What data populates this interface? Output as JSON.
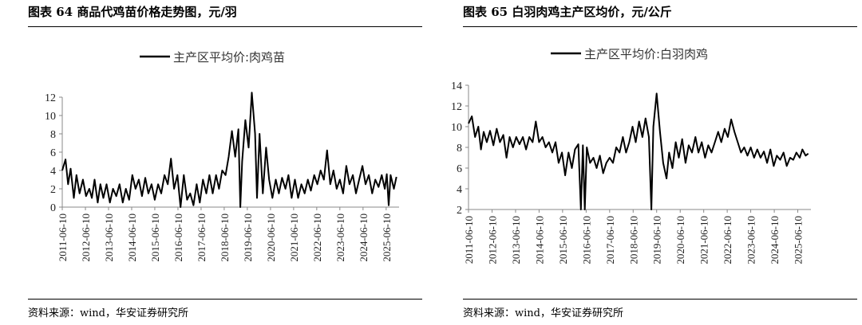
{
  "charts": [
    {
      "figure_title": "图表 64 商品代鸡苗价格走势图，元/羽",
      "source": "资料来源：wind，华安证券研究所"
    },
    {
      "figure_title": "图表 65 白羽肉鸡主产区均价，元/公斤",
      "source": "资料来源：wind，华安证券研究所"
    }
  ],
  "chart_data": [
    {
      "type": "line",
      "title": "",
      "xlabel": "",
      "ylabel": "",
      "xlim": [
        "2011-06-10",
        "2025-12-31"
      ],
      "ylim": [
        0,
        12
      ],
      "yticks": [
        0,
        2,
        4,
        6,
        8,
        10,
        12
      ],
      "xticks": [
        "2011-06-10",
        "2012-06-10",
        "2013-06-10",
        "2014-06-10",
        "2015-06-10",
        "2016-06-10",
        "2017-06-10",
        "2018-06-10",
        "2019-06-10",
        "2020-06-10",
        "2021-06-10",
        "2022-06-10",
        "2023-06-10",
        "2024-06-10",
        "2025-06-10"
      ],
      "grid": false,
      "legend": "top-center",
      "line_color": "#000000",
      "series": [
        {
          "name": "主产区平均价:肉鸡苗",
          "points": [
            [
              "2011-06-10",
              4.0
            ],
            [
              "2011-08-01",
              5.2
            ],
            [
              "2011-09-10",
              2.5
            ],
            [
              "2011-10-20",
              4.2
            ],
            [
              "2011-12-10",
              1.0
            ],
            [
              "2012-01-20",
              3.5
            ],
            [
              "2012-03-10",
              1.5
            ],
            [
              "2012-05-01",
              3.0
            ],
            [
              "2012-06-20",
              1.2
            ],
            [
              "2012-08-10",
              2.0
            ],
            [
              "2012-09-20",
              1.0
            ],
            [
              "2012-11-01",
              3.0
            ],
            [
              "2012-12-20",
              0.5
            ],
            [
              "2013-02-01",
              2.5
            ],
            [
              "2013-03-20",
              1.0
            ],
            [
              "2013-05-10",
              2.5
            ],
            [
              "2013-07-01",
              0.5
            ],
            [
              "2013-08-20",
              2.0
            ],
            [
              "2013-10-10",
              1.2
            ],
            [
              "2013-12-01",
              2.5
            ],
            [
              "2014-01-20",
              0.5
            ],
            [
              "2014-03-10",
              2.0
            ],
            [
              "2014-05-01",
              0.8
            ],
            [
              "2014-06-20",
              3.5
            ],
            [
              "2014-08-10",
              2.0
            ],
            [
              "2014-10-01",
              3.0
            ],
            [
              "2014-11-20",
              1.2
            ],
            [
              "2015-01-10",
              3.2
            ],
            [
              "2015-03-01",
              1.5
            ],
            [
              "2015-04-20",
              2.5
            ],
            [
              "2015-06-10",
              0.8
            ],
            [
              "2015-08-01",
              2.5
            ],
            [
              "2015-09-20",
              1.5
            ],
            [
              "2015-11-10",
              3.5
            ],
            [
              "2016-01-01",
              2.5
            ],
            [
              "2016-02-20",
              5.3
            ],
            [
              "2016-04-10",
              2.0
            ],
            [
              "2016-06-01",
              3.5
            ],
            [
              "2016-07-20",
              0.0
            ],
            [
              "2016-09-10",
              3.5
            ],
            [
              "2016-11-01",
              0.8
            ],
            [
              "2016-12-20",
              1.5
            ],
            [
              "2017-02-10",
              0.2
            ],
            [
              "2017-04-01",
              2.5
            ],
            [
              "2017-05-20",
              0.5
            ],
            [
              "2017-07-10",
              3.0
            ],
            [
              "2017-09-01",
              1.5
            ],
            [
              "2017-10-20",
              3.5
            ],
            [
              "2017-12-10",
              1.5
            ],
            [
              "2018-02-01",
              3.5
            ],
            [
              "2018-03-20",
              2.0
            ],
            [
              "2018-05-10",
              4.0
            ],
            [
              "2018-07-01",
              3.5
            ],
            [
              "2018-08-20",
              5.5
            ],
            [
              "2018-10-10",
              8.3
            ],
            [
              "2018-12-01",
              5.5
            ],
            [
              "2019-01-20",
              8.5
            ],
            [
              "2019-02-20",
              0.0
            ],
            [
              "2019-03-20",
              5.0
            ],
            [
              "2019-05-10",
              9.5
            ],
            [
              "2019-07-01",
              6.5
            ],
            [
              "2019-08-20",
              12.5
            ],
            [
              "2019-10-10",
              8.0
            ],
            [
              "2019-11-10",
              1.0
            ],
            [
              "2019-12-20",
              8.0
            ],
            [
              "2020-02-10",
              1.5
            ],
            [
              "2020-04-01",
              6.5
            ],
            [
              "2020-05-20",
              3.0
            ],
            [
              "2020-07-10",
              1.0
            ],
            [
              "2020-09-01",
              3.0
            ],
            [
              "2020-10-20",
              1.5
            ],
            [
              "2020-12-10",
              3.2
            ],
            [
              "2021-02-01",
              2.0
            ],
            [
              "2021-03-20",
              3.5
            ],
            [
              "2021-05-10",
              1.0
            ],
            [
              "2021-07-01",
              3.0
            ],
            [
              "2021-08-20",
              1.0
            ],
            [
              "2021-10-10",
              2.5
            ],
            [
              "2021-12-01",
              1.5
            ],
            [
              "2022-01-20",
              3.0
            ],
            [
              "2022-03-10",
              1.8
            ],
            [
              "2022-05-01",
              3.5
            ],
            [
              "2022-06-20",
              2.5
            ],
            [
              "2022-08-10",
              4.0
            ],
            [
              "2022-10-01",
              3.0
            ],
            [
              "2022-11-20",
              6.2
            ],
            [
              "2023-01-10",
              2.5
            ],
            [
              "2023-03-01",
              4.0
            ],
            [
              "2023-04-20",
              2.0
            ],
            [
              "2023-06-10",
              3.0
            ],
            [
              "2023-08-01",
              1.5
            ],
            [
              "2023-09-20",
              4.5
            ],
            [
              "2023-11-10",
              2.5
            ],
            [
              "2024-01-01",
              3.5
            ],
            [
              "2024-02-20",
              1.5
            ],
            [
              "2024-04-10",
              3.0
            ],
            [
              "2024-06-01",
              4.5
            ],
            [
              "2024-07-20",
              2.5
            ],
            [
              "2024-09-10",
              3.5
            ],
            [
              "2024-11-01",
              1.5
            ],
            [
              "2024-12-20",
              3.0
            ],
            [
              "2025-02-10",
              2.2
            ],
            [
              "2025-04-01",
              3.5
            ],
            [
              "2025-05-20",
              2.0
            ],
            [
              "2025-06-20",
              3.6
            ],
            [
              "2025-07-20",
              0.2
            ],
            [
              "2025-08-20",
              3.5
            ],
            [
              "2025-10-10",
              2.0
            ],
            [
              "2025-11-20",
              3.3
            ]
          ]
        }
      ]
    },
    {
      "type": "line",
      "title": "",
      "xlabel": "",
      "ylabel": "",
      "xlim": [
        "2011-06-10",
        "2025-12-31"
      ],
      "ylim": [
        2,
        14
      ],
      "yticks": [
        2,
        4,
        6,
        8,
        10,
        12,
        14
      ],
      "xticks": [
        "2011-06-10",
        "2012-06-10",
        "2013-06-10",
        "2014-06-10",
        "2015-06-10",
        "2016-06-10",
        "2017-06-10",
        "2018-06-10",
        "2019-06-10",
        "2020-06-10",
        "2021-06-10",
        "2022-06-10",
        "2023-06-10",
        "2024-06-10",
        "2025-06-10"
      ],
      "grid": false,
      "legend": "top-center",
      "line_color": "#000000",
      "series": [
        {
          "name": "主产区平均价:白羽肉鸡",
          "points": [
            [
              "2011-06-10",
              10.3
            ],
            [
              "2011-08-01",
              11.0
            ],
            [
              "2011-09-20",
              9.0
            ],
            [
              "2011-11-10",
              10.0
            ],
            [
              "2011-12-20",
              7.8
            ],
            [
              "2012-02-01",
              9.5
            ],
            [
              "2012-03-20",
              8.5
            ],
            [
              "2012-05-10",
              9.6
            ],
            [
              "2012-07-01",
              8.2
            ],
            [
              "2012-08-20",
              9.8
            ],
            [
              "2012-10-10",
              8.5
            ],
            [
              "2012-12-01",
              9.2
            ],
            [
              "2013-01-20",
              7.0
            ],
            [
              "2013-03-10",
              9.0
            ],
            [
              "2013-05-01",
              8.0
            ],
            [
              "2013-06-20",
              9.0
            ],
            [
              "2013-08-10",
              8.3
            ],
            [
              "2013-10-01",
              9.0
            ],
            [
              "2013-11-20",
              7.8
            ],
            [
              "2014-01-10",
              9.0
            ],
            [
              "2014-03-01",
              8.5
            ],
            [
              "2014-04-20",
              10.5
            ],
            [
              "2014-06-10",
              8.5
            ],
            [
              "2014-08-01",
              9.0
            ],
            [
              "2014-09-20",
              8.0
            ],
            [
              "2014-11-10",
              8.5
            ],
            [
              "2015-01-01",
              7.5
            ],
            [
              "2015-02-20",
              8.5
            ],
            [
              "2015-04-10",
              6.5
            ],
            [
              "2015-06-01",
              7.5
            ],
            [
              "2015-07-20",
              5.3
            ],
            [
              "2015-09-10",
              7.5
            ],
            [
              "2015-11-01",
              6.0
            ],
            [
              "2015-12-20",
              7.8
            ],
            [
              "2016-02-10",
              8.3
            ],
            [
              "2016-03-20",
              2.0
            ],
            [
              "2016-04-20",
              8.2
            ],
            [
              "2016-05-20",
              2.0
            ],
            [
              "2016-06-20",
              8.0
            ],
            [
              "2016-08-10",
              6.5
            ],
            [
              "2016-10-01",
              7.0
            ],
            [
              "2016-11-20",
              6.0
            ],
            [
              "2017-01-10",
              7.2
            ],
            [
              "2017-03-01",
              5.5
            ],
            [
              "2017-04-20",
              6.5
            ],
            [
              "2017-06-10",
              7.0
            ],
            [
              "2017-08-01",
              6.5
            ],
            [
              "2017-09-20",
              8.0
            ],
            [
              "2017-11-10",
              7.5
            ],
            [
              "2018-01-01",
              9.0
            ],
            [
              "2018-02-20",
              7.5
            ],
            [
              "2018-04-10",
              8.5
            ],
            [
              "2018-06-01",
              10.0
            ],
            [
              "2018-07-20",
              8.5
            ],
            [
              "2018-09-10",
              10.5
            ],
            [
              "2018-11-01",
              9.0
            ],
            [
              "2018-12-20",
              10.8
            ],
            [
              "2019-02-10",
              9.0
            ],
            [
              "2019-03-20",
              2.0
            ],
            [
              "2019-04-20",
              10.0
            ],
            [
              "2019-06-10",
              13.2
            ],
            [
              "2019-08-01",
              9.5
            ],
            [
              "2019-09-20",
              6.5
            ],
            [
              "2019-11-10",
              5.0
            ],
            [
              "2019-12-20",
              7.5
            ],
            [
              "2020-02-10",
              6.0
            ],
            [
              "2020-04-01",
              8.5
            ],
            [
              "2020-05-20",
              7.0
            ],
            [
              "2020-07-10",
              8.8
            ],
            [
              "2020-09-01",
              6.5
            ],
            [
              "2020-10-20",
              8.2
            ],
            [
              "2020-12-10",
              7.5
            ],
            [
              "2021-02-01",
              9.0
            ],
            [
              "2021-03-20",
              7.5
            ],
            [
              "2021-05-10",
              8.5
            ],
            [
              "2021-07-01",
              7.0
            ],
            [
              "2021-08-20",
              8.2
            ],
            [
              "2021-10-10",
              7.5
            ],
            [
              "2021-12-01",
              8.5
            ],
            [
              "2022-01-20",
              9.5
            ],
            [
              "2022-03-10",
              8.5
            ],
            [
              "2022-05-01",
              9.8
            ],
            [
              "2022-06-20",
              9.0
            ],
            [
              "2022-08-10",
              10.7
            ],
            [
              "2022-10-01",
              9.5
            ],
            [
              "2022-11-20",
              8.5
            ],
            [
              "2023-01-10",
              7.5
            ],
            [
              "2023-03-01",
              8.0
            ],
            [
              "2023-04-20",
              7.2
            ],
            [
              "2023-06-10",
              8.0
            ],
            [
              "2023-08-01",
              7.0
            ],
            [
              "2023-09-20",
              7.8
            ],
            [
              "2023-11-10",
              7.0
            ],
            [
              "2024-01-01",
              7.6
            ],
            [
              "2024-02-20",
              6.5
            ],
            [
              "2024-04-10",
              7.8
            ],
            [
              "2024-06-01",
              6.2
            ],
            [
              "2024-07-20",
              7.2
            ],
            [
              "2024-09-10",
              6.8
            ],
            [
              "2024-11-01",
              7.5
            ],
            [
              "2024-12-20",
              6.2
            ],
            [
              "2025-02-10",
              7.0
            ],
            [
              "2025-04-01",
              6.8
            ],
            [
              "2025-05-20",
              7.5
            ],
            [
              "2025-07-10",
              7.0
            ],
            [
              "2025-08-20",
              7.8
            ],
            [
              "2025-10-10",
              7.2
            ],
            [
              "2025-11-20",
              7.4
            ]
          ]
        }
      ]
    }
  ]
}
